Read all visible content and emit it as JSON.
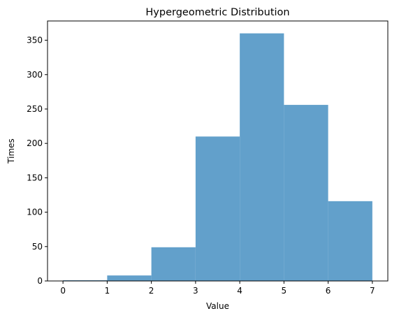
{
  "chart_data": {
    "type": "bar",
    "title": "Hypergeometric Distribution",
    "xlabel": "Value",
    "ylabel": "Times",
    "bin_edges": [
      0,
      1,
      2,
      3,
      4,
      5,
      6,
      7
    ],
    "values": [
      1,
      8,
      49,
      210,
      360,
      256,
      116
    ],
    "xlim": [
      -0.35,
      7.35
    ],
    "ylim": [
      0,
      378
    ],
    "xticks": [
      0,
      1,
      2,
      3,
      4,
      5,
      6,
      7
    ],
    "yticks": [
      0,
      50,
      100,
      150,
      200,
      250,
      300,
      350
    ],
    "bar_color": "#62a0cb",
    "grid": false,
    "legend": "none"
  }
}
